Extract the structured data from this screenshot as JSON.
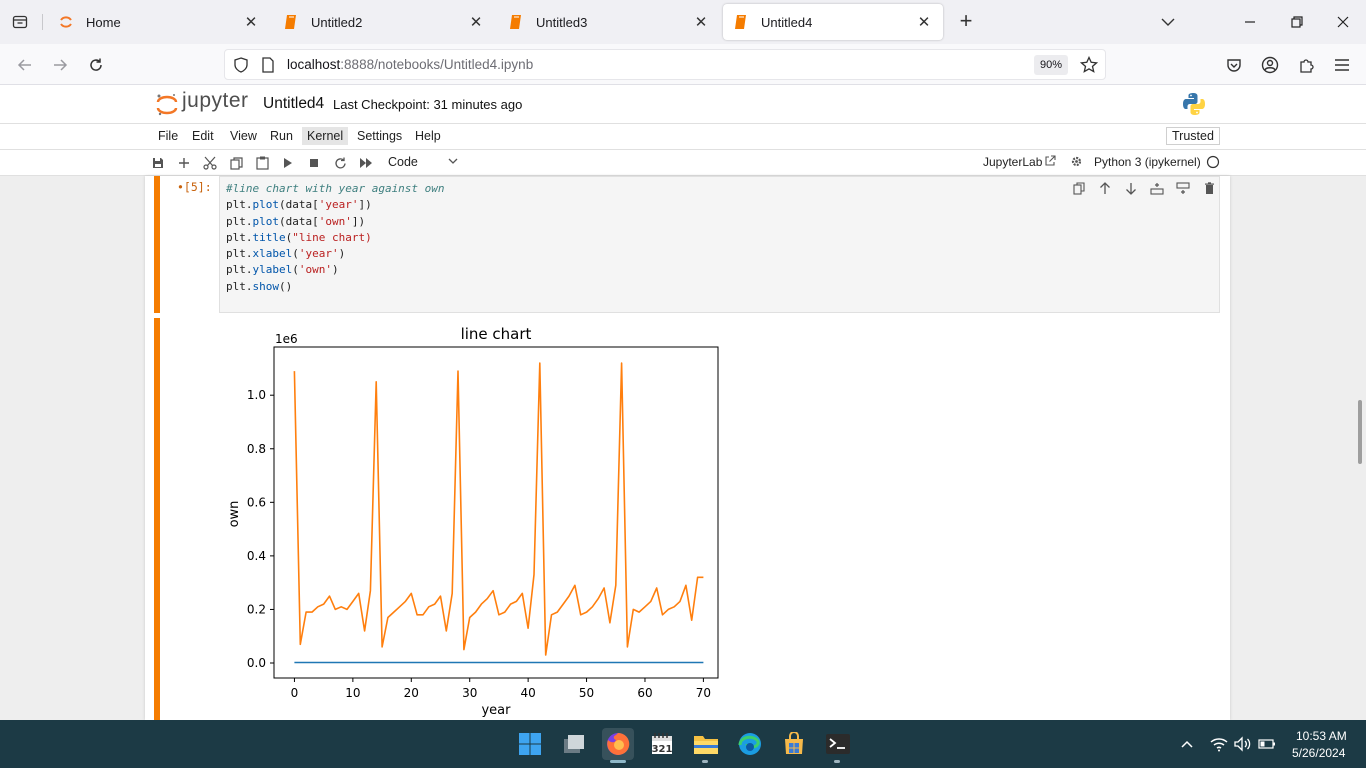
{
  "browser": {
    "tabs": [
      {
        "label": "Home",
        "active": false
      },
      {
        "label": "Untitled2",
        "active": false
      },
      {
        "label": "Untitled3",
        "active": false
      },
      {
        "label": "Untitled4",
        "active": true
      }
    ],
    "url_host": "localhost",
    "url_port": ":8888",
    "url_path": "/notebooks/Untitled4.ipynb",
    "zoom": "90%"
  },
  "jupyter": {
    "logo_text": "jupyter",
    "title": "Untitled4",
    "checkpoint": "Last Checkpoint: 31 minutes ago",
    "menu": [
      "File",
      "Edit",
      "View",
      "Run",
      "Kernel",
      "Settings",
      "Help"
    ],
    "trusted": "Trusted",
    "cell_type": "Code",
    "jupyterlab_link": "JupyterLab",
    "kernel": "Python 3 (ipykernel)"
  },
  "cell": {
    "prompt": "•[5]:",
    "code": [
      {
        "tokens": [
          [
            "cm",
            "#line chart with year against own"
          ]
        ]
      },
      {
        "tokens": [
          [
            "var",
            "plt"
          ],
          [
            "p",
            "."
          ],
          [
            "attr",
            "plot"
          ],
          [
            "p",
            "(data["
          ],
          [
            "str",
            "'year'"
          ],
          [
            "p",
            "])"
          ]
        ]
      },
      {
        "tokens": [
          [
            "var",
            "plt"
          ],
          [
            "p",
            "."
          ],
          [
            "attr",
            "plot"
          ],
          [
            "p",
            "(data["
          ],
          [
            "str",
            "'own'"
          ],
          [
            "p",
            "])"
          ]
        ]
      },
      {
        "tokens": [
          [
            "var",
            "plt"
          ],
          [
            "p",
            "."
          ],
          [
            "attr",
            "title"
          ],
          [
            "p",
            "("
          ],
          [
            "str",
            "\"line chart)"
          ]
        ]
      },
      {
        "tokens": [
          [
            "var",
            "plt"
          ],
          [
            "p",
            "."
          ],
          [
            "attr",
            "xlabel"
          ],
          [
            "p",
            "("
          ],
          [
            "str",
            "'year'"
          ],
          [
            "p",
            ")"
          ]
        ]
      },
      {
        "tokens": [
          [
            "var",
            "plt"
          ],
          [
            "p",
            "."
          ],
          [
            "attr",
            "ylabel"
          ],
          [
            "p",
            "("
          ],
          [
            "str",
            "'own'"
          ],
          [
            "p",
            ")"
          ]
        ]
      },
      {
        "tokens": [
          [
            "var",
            "plt"
          ],
          [
            "p",
            "."
          ],
          [
            "attr",
            "show"
          ],
          [
            "p",
            "()"
          ]
        ]
      }
    ]
  },
  "chart_data": {
    "type": "line",
    "title": "line chart",
    "xlabel": "year",
    "ylabel": "own",
    "y_offset_text": "1e6",
    "xlim": [
      -3.5,
      72.5
    ],
    "ylim": [
      -0.056,
      1.18
    ],
    "xticks": [
      0,
      10,
      20,
      30,
      40,
      50,
      60,
      70
    ],
    "yticks": [
      0.0,
      0.2,
      0.4,
      0.6,
      0.8,
      1.0
    ],
    "ytick_labels": [
      "0.0",
      "0.2",
      "0.4",
      "0.6",
      "0.8",
      "1.0"
    ],
    "grid": false,
    "series": [
      {
        "color": "#1f77b4",
        "x": [
          0,
          70
        ],
        "values": [
          0.002,
          0.002
        ]
      },
      {
        "color": "#ff7f0e",
        "x": [
          0,
          1,
          2,
          3,
          4,
          5,
          6,
          7,
          8,
          9,
          10,
          11,
          12,
          13,
          14,
          15,
          16,
          17,
          18,
          19,
          20,
          21,
          22,
          23,
          24,
          25,
          26,
          27,
          28,
          29,
          30,
          31,
          32,
          33,
          34,
          35,
          36,
          37,
          38,
          39,
          40,
          41,
          42,
          43,
          44,
          45,
          46,
          47,
          48,
          49,
          50,
          51,
          52,
          53,
          54,
          55,
          56,
          57,
          58,
          59,
          60,
          61,
          62,
          63,
          64,
          65,
          66,
          67,
          68,
          69,
          70
        ],
        "values": [
          1.09,
          0.07,
          0.19,
          0.19,
          0.21,
          0.22,
          0.25,
          0.2,
          0.21,
          0.2,
          0.23,
          0.26,
          0.12,
          0.27,
          1.05,
          0.06,
          0.17,
          0.19,
          0.21,
          0.23,
          0.26,
          0.18,
          0.18,
          0.21,
          0.22,
          0.25,
          0.12,
          0.26,
          1.09,
          0.05,
          0.17,
          0.19,
          0.22,
          0.24,
          0.27,
          0.18,
          0.19,
          0.22,
          0.23,
          0.26,
          0.13,
          0.33,
          1.12,
          0.03,
          0.18,
          0.19,
          0.22,
          0.25,
          0.29,
          0.18,
          0.19,
          0.21,
          0.24,
          0.28,
          0.15,
          0.29,
          1.12,
          0.06,
          0.2,
          0.19,
          0.21,
          0.23,
          0.28,
          0.18,
          0.2,
          0.21,
          0.23,
          0.29,
          0.16,
          0.32,
          0.32
        ]
      }
    ]
  },
  "taskbar": {
    "time": "10:53 AM",
    "date": "5/26/2024"
  }
}
